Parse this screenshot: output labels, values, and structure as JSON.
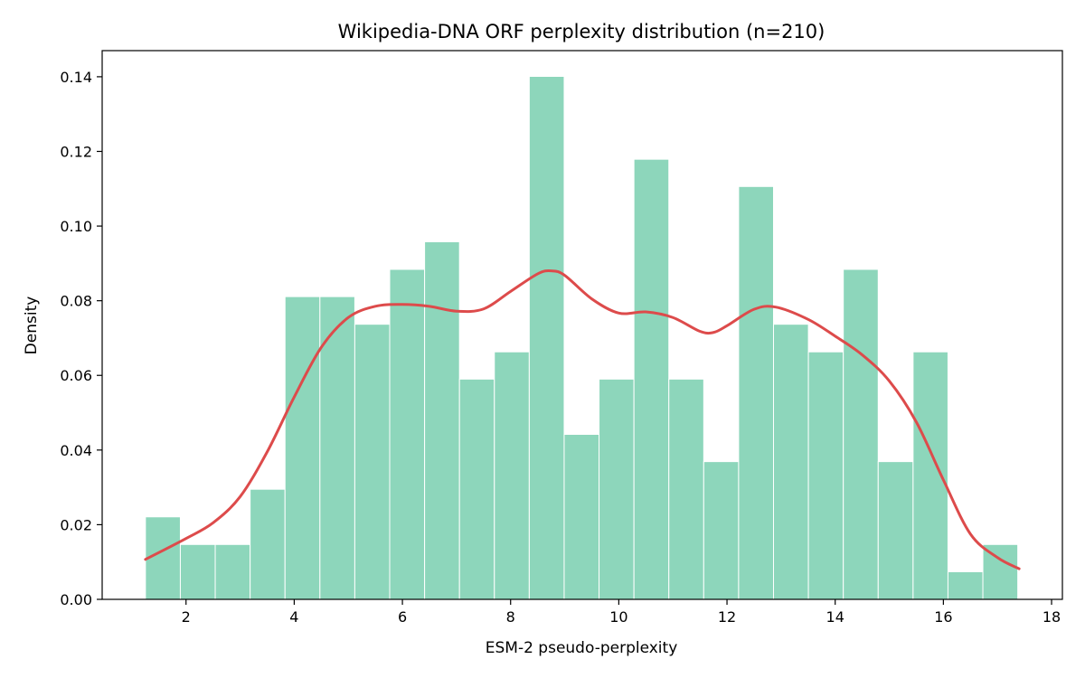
{
  "chart_data": {
    "type": "bar",
    "title": "Wikipedia-DNA ORF perplexity distribution (n=210)",
    "xlabel": "ESM-2 pseudo-perplexity",
    "ylabel": "Density",
    "xlim": [
      0.45,
      18.2
    ],
    "ylim": [
      0,
      0.147
    ],
    "xticks": [
      2,
      4,
      6,
      8,
      10,
      12,
      14,
      16,
      18
    ],
    "yticks": [
      0.0,
      0.02,
      0.04,
      0.06,
      0.08,
      0.1,
      0.12,
      0.14
    ],
    "ytick_labels": [
      "0.00",
      "0.02",
      "0.04",
      "0.06",
      "0.08",
      "0.10",
      "0.12",
      "0.14"
    ],
    "bin_edges": [
      1.25,
      1.895,
      2.54,
      3.185,
      3.83,
      4.475,
      5.12,
      5.765,
      6.41,
      7.055,
      7.7,
      8.345,
      8.99,
      9.635,
      10.28,
      10.925,
      11.57,
      12.215,
      12.86,
      13.505,
      14.15,
      14.795,
      15.44,
      16.085,
      16.73,
      17.375
    ],
    "values": [
      0.0221,
      0.0147,
      0.0147,
      0.0295,
      0.0811,
      0.0811,
      0.0737,
      0.0884,
      0.0958,
      0.059,
      0.0663,
      0.1401,
      0.0442,
      0.059,
      0.1179,
      0.059,
      0.0369,
      0.1106,
      0.0737,
      0.0663,
      0.0884,
      0.0369,
      0.0663,
      0.0074,
      0.0147
    ],
    "kde": {
      "x": [
        1.25,
        2.0,
        2.5,
        3.0,
        3.5,
        4.0,
        4.5,
        5.0,
        5.5,
        6.0,
        6.5,
        7.0,
        7.5,
        8.0,
        8.5,
        8.75,
        9.0,
        9.5,
        10.0,
        10.5,
        11.0,
        11.5,
        11.75,
        12.0,
        12.5,
        12.9,
        13.5,
        14.0,
        14.5,
        15.0,
        15.5,
        16.0,
        16.5,
        17.0,
        17.4
      ],
      "y": [
        0.0107,
        0.0163,
        0.0205,
        0.0275,
        0.0395,
        0.0542,
        0.0675,
        0.0755,
        0.0785,
        0.079,
        0.0785,
        0.0772,
        0.0778,
        0.0825,
        0.0872,
        0.088,
        0.0868,
        0.0805,
        0.0767,
        0.077,
        0.0755,
        0.0718,
        0.0715,
        0.0733,
        0.0777,
        0.0783,
        0.075,
        0.0705,
        0.0655,
        0.0585,
        0.0475,
        0.032,
        0.0175,
        0.0112,
        0.0082
      ]
    },
    "colors": {
      "bar": "#8dd6bb",
      "bar_edge": "#ffffff",
      "kde": "#dd4b4b"
    },
    "legend": "none",
    "grid": false
  }
}
